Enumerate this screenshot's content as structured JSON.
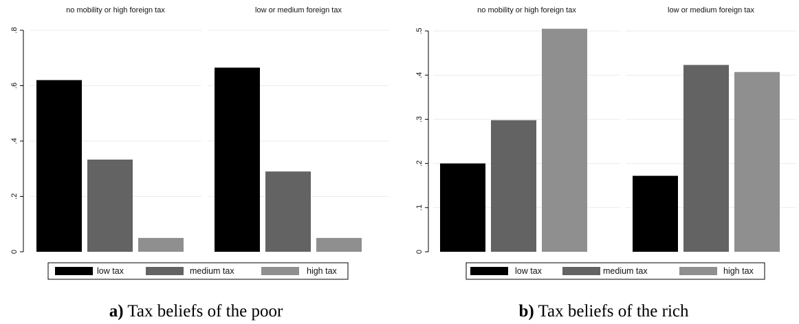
{
  "chart_data": [
    {
      "type": "bar",
      "caption_label": "a)",
      "caption_text": "Tax beliefs of the poor",
      "ylim": [
        0,
        0.8
      ],
      "yticks": [
        0,
        0.2,
        0.4,
        0.6,
        0.8
      ],
      "ytick_labels": [
        "0",
        ".2",
        ".4",
        ".6",
        ".8"
      ],
      "grid": true,
      "legend_position": "bottom",
      "categories": [
        "low tax",
        "medium tax",
        "high tax"
      ],
      "colors": [
        "#000000",
        "#636363",
        "#8f8f8f"
      ],
      "panels": [
        {
          "title": "no mobility or high foreign tax",
          "values": [
            0.62,
            0.333,
            0.05
          ]
        },
        {
          "title": "low or medium foreign tax",
          "values": [
            0.665,
            0.29,
            0.05
          ]
        }
      ]
    },
    {
      "type": "bar",
      "caption_label": "b)",
      "caption_text": "Tax beliefs of the rich",
      "ylim": [
        0,
        0.5
      ],
      "yticks": [
        0,
        0.1,
        0.2,
        0.3,
        0.4,
        0.5
      ],
      "ytick_labels": [
        "0",
        ".1",
        ".2",
        ".3",
        ".4",
        ".5"
      ],
      "grid": true,
      "legend_position": "bottom",
      "categories": [
        "low tax",
        "medium tax",
        "high tax"
      ],
      "colors": [
        "#000000",
        "#636363",
        "#8f8f8f"
      ],
      "panels": [
        {
          "title": "no mobility or high foreign tax",
          "values": [
            0.2,
            0.298,
            0.505
          ]
        },
        {
          "title": "low or medium foreign tax",
          "values": [
            0.172,
            0.423,
            0.407
          ]
        }
      ]
    }
  ]
}
